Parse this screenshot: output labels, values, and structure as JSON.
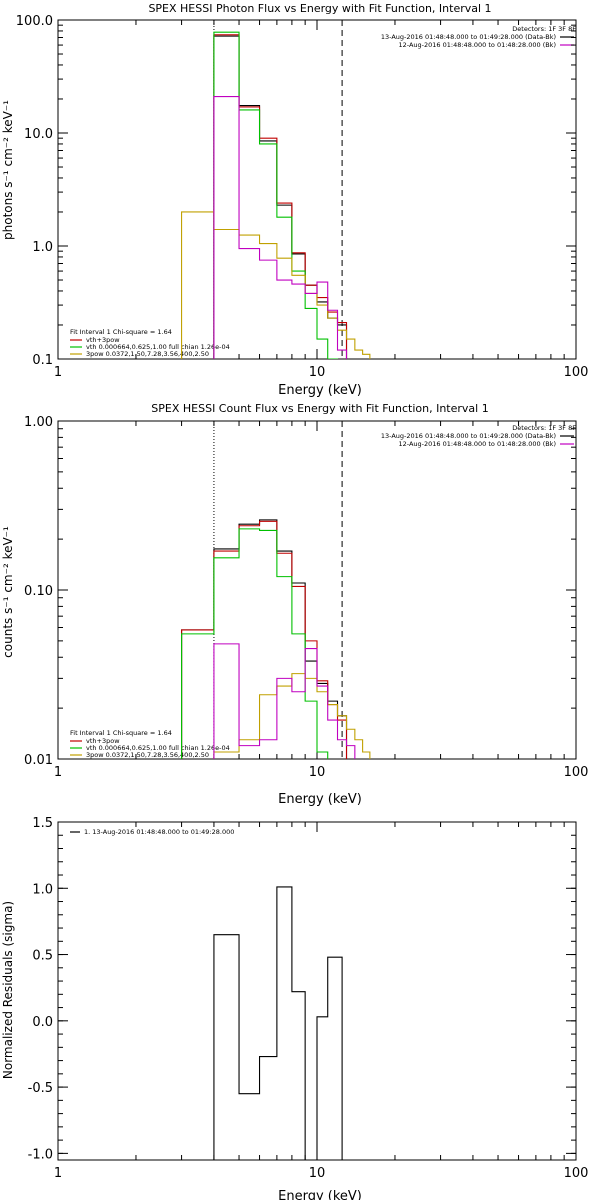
{
  "chart_data": [
    {
      "type": "step",
      "title": "SPEX HESSI Photon Flux vs Energy with Fit Function, Interval 1",
      "xlabel": "Energy (keV)",
      "ylabel": "photons s⁻¹ cm⁻² keV⁻¹",
      "x_scale": "log",
      "y_scale": "log",
      "xlim": [
        1,
        100
      ],
      "ylim": [
        0.1,
        100
      ],
      "x_ticks": [
        "1",
        "10",
        "100"
      ],
      "y_ticks": [
        "0.1",
        "1.0",
        "10.0",
        "100.0"
      ],
      "fit_range_keV": [
        4.0,
        12.5
      ],
      "legend": {
        "detectors": "Detectors: 1F 3F 8F",
        "entries": [
          {
            "text": "13-Aug-2016 01:48:48.000 to 01:49:28.000 (Data-Bk)",
            "color": "#000000"
          },
          {
            "text": "12-Aug-2016 01:48:48.000 to 01:48:28.000 (Bk)",
            "color": "#c000c0"
          }
        ]
      },
      "fit_info": {
        "header": "Fit Interval 1   Chi-square = 1.64",
        "lines": [
          {
            "text": "vth+3pow",
            "color": "#c00000"
          },
          {
            "text": "vth 0.000664,0.625,1.00  full chian 1.26e-04",
            "color": "#00c000"
          },
          {
            "text": "3pow 0.0372,1.50,7.28,3.56,400,2.50",
            "color": "#c0a000"
          }
        ]
      },
      "bin_edges": [
        3,
        4,
        5,
        6,
        7,
        8,
        9,
        10,
        11,
        12,
        13,
        14,
        15,
        16
      ],
      "series": [
        {
          "name": "Data-Bk",
          "color": "#000000",
          "values": [
            null,
            72,
            17.5,
            8.5,
            2.3,
            0.85,
            0.45,
            0.32,
            0.23,
            0.2,
            null,
            null,
            null
          ]
        },
        {
          "name": "vth+3pow",
          "color": "#c00000",
          "values": [
            null,
            74,
            17,
            9,
            2.4,
            0.87,
            0.45,
            0.35,
            0.26,
            0.21,
            null,
            null,
            null
          ]
        },
        {
          "name": "vth",
          "color": "#00c000",
          "values": [
            null,
            78,
            16,
            8,
            1.8,
            0.6,
            0.28,
            0.15,
            0.1,
            null,
            null,
            null,
            null
          ]
        },
        {
          "name": "3pow",
          "color": "#c0a000",
          "values": [
            2,
            1.4,
            1.25,
            1.05,
            0.78,
            0.55,
            0.38,
            0.3,
            0.23,
            0.18,
            0.15,
            0.12,
            0.11
          ]
        },
        {
          "name": "Bk",
          "color": "#c000c0",
          "values": [
            null,
            21,
            0.95,
            0.75,
            0.5,
            0.46,
            0.38,
            0.48,
            0.27,
            0.12,
            null,
            null,
            null
          ]
        }
      ]
    },
    {
      "type": "step",
      "title": "SPEX HESSI Count Flux vs Energy with Fit Function, Interval 1",
      "xlabel": "Energy (keV)",
      "ylabel": "counts s⁻¹ cm⁻² keV⁻¹",
      "x_scale": "log",
      "y_scale": "log",
      "xlim": [
        1,
        100
      ],
      "ylim": [
        0.01,
        1
      ],
      "x_ticks": [
        "1",
        "10",
        "100"
      ],
      "y_ticks": [
        "0.01",
        "0.10",
        "1.00"
      ],
      "fit_range_keV": [
        4.0,
        12.5
      ],
      "legend": {
        "detectors": "Detectors: 1F 3F 8F",
        "entries": [
          {
            "text": "13-Aug-2016 01:48:48.000 to 01:49:28.000 (Data-Bk)",
            "color": "#000000"
          },
          {
            "text": "12-Aug-2016 01:48:48.000 to 01:48:28.000 (Bk)",
            "color": "#c000c0"
          }
        ]
      },
      "fit_info": {
        "header": "Fit Interval 1   Chi-square = 1.64",
        "lines": [
          {
            "text": "vth+3pow",
            "color": "#c00000"
          },
          {
            "text": "vth 0.000664,0.625,1.00  full chian 1.26e-04",
            "color": "#00c000"
          },
          {
            "text": "3pow 0.0372,1.50,7.28,3.56,400,2.50",
            "color": "#c0a000"
          }
        ]
      },
      "bin_edges": [
        3,
        4,
        5,
        6,
        7,
        8,
        9,
        10,
        11,
        12,
        13,
        14,
        15,
        16
      ],
      "series": [
        {
          "name": "Data-Bk",
          "color": "#000000",
          "values": [
            0.058,
            0.175,
            0.245,
            0.26,
            0.17,
            0.11,
            0.038,
            0.028,
            0.022,
            0.018,
            null,
            null,
            null
          ]
        },
        {
          "name": "vth+3pow",
          "color": "#c00000",
          "values": [
            0.058,
            0.17,
            0.24,
            0.255,
            0.165,
            0.105,
            0.05,
            0.029,
            0.021,
            0.017,
            null,
            null,
            null
          ]
        },
        {
          "name": "vth",
          "color": "#00c000",
          "values": [
            0.055,
            0.155,
            0.23,
            0.225,
            0.12,
            0.055,
            0.022,
            0.011,
            null,
            null,
            null,
            null,
            null
          ]
        },
        {
          "name": "3pow",
          "color": "#c0a000",
          "values": [
            null,
            0.011,
            0.013,
            0.024,
            0.027,
            0.032,
            0.03,
            0.025,
            0.021,
            0.018,
            0.015,
            0.013,
            0.011
          ]
        },
        {
          "name": "Bk",
          "color": "#c000c0",
          "values": [
            null,
            0.048,
            0.012,
            0.013,
            0.03,
            0.025,
            0.045,
            0.027,
            0.017,
            0.013,
            0.012,
            null,
            null
          ]
        }
      ]
    },
    {
      "type": "step",
      "title": "",
      "xlabel": "Energy (keV)",
      "ylabel": "Normalized Residuals (sigma)",
      "x_scale": "log",
      "y_scale": "linear",
      "xlim": [
        1,
        100
      ],
      "ylim": [
        -1.05,
        1.5
      ],
      "x_ticks": [
        "1",
        "10",
        "100"
      ],
      "y_ticks": [
        "-1.0",
        "-0.5",
        "0.0",
        "0.5",
        "1.0",
        "1.5"
      ],
      "legend_text": "1. 13-Aug-2016 01:48:48.000 to 01:49:28.000",
      "bin_edges": [
        4,
        5,
        6,
        7,
        8,
        9,
        10,
        11,
        12.5
      ],
      "series": [
        {
          "name": "residuals",
          "color": "#000000",
          "values": [
            0.65,
            -0.55,
            -0.27,
            1.01,
            0.22,
            -1.05,
            0.03,
            0.48
          ]
        }
      ]
    }
  ]
}
